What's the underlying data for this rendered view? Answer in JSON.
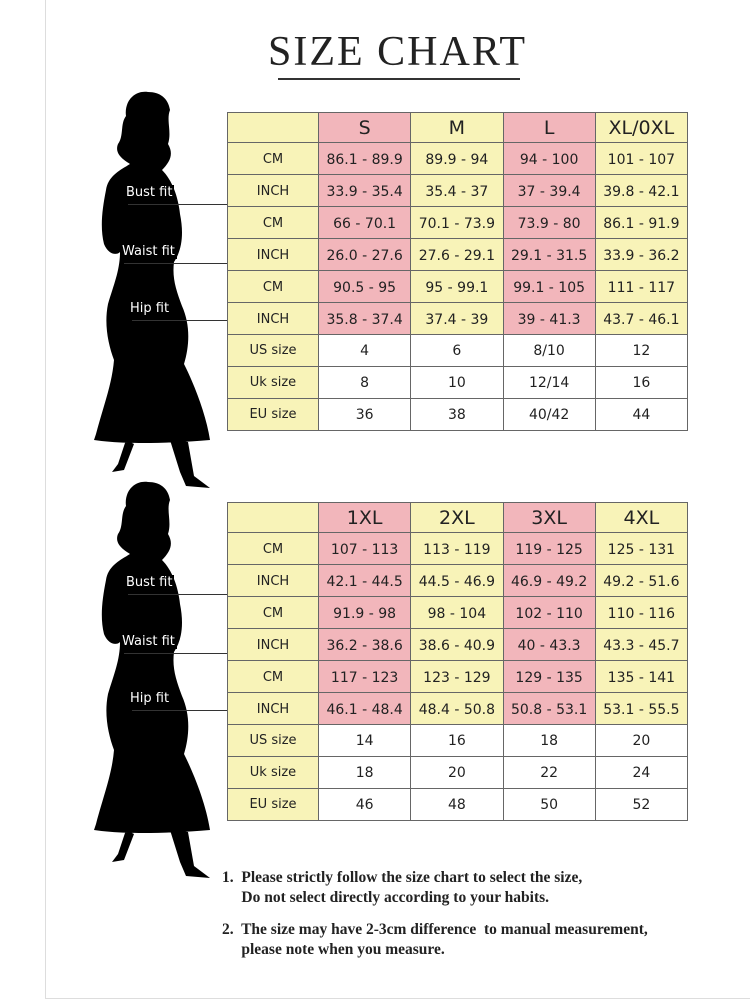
{
  "title": "SIZE CHART",
  "fit_labels": {
    "bust": "Bust fit",
    "waist": "Waist fit",
    "hip": "Hip fit"
  },
  "colors": {
    "yellow": "#f8f3b8",
    "pink": "#f2b6bb"
  },
  "tables": [
    {
      "sizes": [
        "S",
        "M",
        "L",
        "XL/0XL"
      ],
      "rows": [
        {
          "label": "CM",
          "values": [
            "86.1 - 89.9",
            "89.9 - 94",
            "94 - 100",
            "101 - 107"
          ]
        },
        {
          "label": "INCH",
          "values": [
            "33.9 - 35.4",
            "35.4 - 37",
            "37 - 39.4",
            "39.8 - 42.1"
          ]
        },
        {
          "label": "CM",
          "values": [
            "66 - 70.1",
            "70.1 - 73.9",
            "73.9 - 80",
            "86.1 - 91.9"
          ]
        },
        {
          "label": "INCH",
          "values": [
            "26.0 - 27.6",
            "27.6 - 29.1",
            "29.1 - 31.5",
            "33.9 - 36.2"
          ]
        },
        {
          "label": "CM",
          "values": [
            "90.5 - 95",
            "95 - 99.1",
            "99.1 - 105",
            "111 - 117"
          ]
        },
        {
          "label": "INCH",
          "values": [
            "35.8 - 37.4",
            "37.4 - 39",
            "39 - 41.3",
            "43.7 - 46.1"
          ]
        },
        {
          "label": "US size",
          "values": [
            "4",
            "6",
            "8/10",
            "12"
          ]
        },
        {
          "label": "Uk size",
          "values": [
            "8",
            "10",
            "12/14",
            "16"
          ]
        },
        {
          "label": "EU size",
          "values": [
            "36",
            "38",
            "40/42",
            "44"
          ]
        }
      ]
    },
    {
      "sizes": [
        "1XL",
        "2XL",
        "3XL",
        "4XL"
      ],
      "rows": [
        {
          "label": "CM",
          "values": [
            "107 - 113",
            "113 - 119",
            "119 - 125",
            "125 - 131"
          ]
        },
        {
          "label": "INCH",
          "values": [
            "42.1 - 44.5",
            "44.5 - 46.9",
            "46.9 - 49.2",
            "49.2 - 51.6"
          ]
        },
        {
          "label": "CM",
          "values": [
            "91.9 - 98",
            "98 - 104",
            "102 - 110",
            "110 - 116"
          ]
        },
        {
          "label": "INCH",
          "values": [
            "36.2 - 38.6",
            "38.6 - 40.9",
            "40 - 43.3",
            "43.3 - 45.7"
          ]
        },
        {
          "label": "CM",
          "values": [
            "117 - 123",
            "123 - 129",
            "129 - 135",
            "135 - 141"
          ]
        },
        {
          "label": "INCH",
          "values": [
            "46.1 - 48.4",
            "48.4 - 50.8",
            "50.8 - 53.1",
            "53.1 - 55.5"
          ]
        },
        {
          "label": "US size",
          "values": [
            "14",
            "16",
            "18",
            "20"
          ]
        },
        {
          "label": "Uk size",
          "values": [
            "18",
            "20",
            "22",
            "24"
          ]
        },
        {
          "label": "EU size",
          "values": [
            "46",
            "48",
            "50",
            "52"
          ]
        }
      ]
    }
  ],
  "notes": [
    {
      "line1": "1.  Please strictly follow the size chart to select the size,",
      "line2": "     Do not select directly according to your habits."
    },
    {
      "line1": "2.  The size may have 2-3cm difference  to manual measurement,",
      "line2": "     please note when you measure."
    }
  ]
}
